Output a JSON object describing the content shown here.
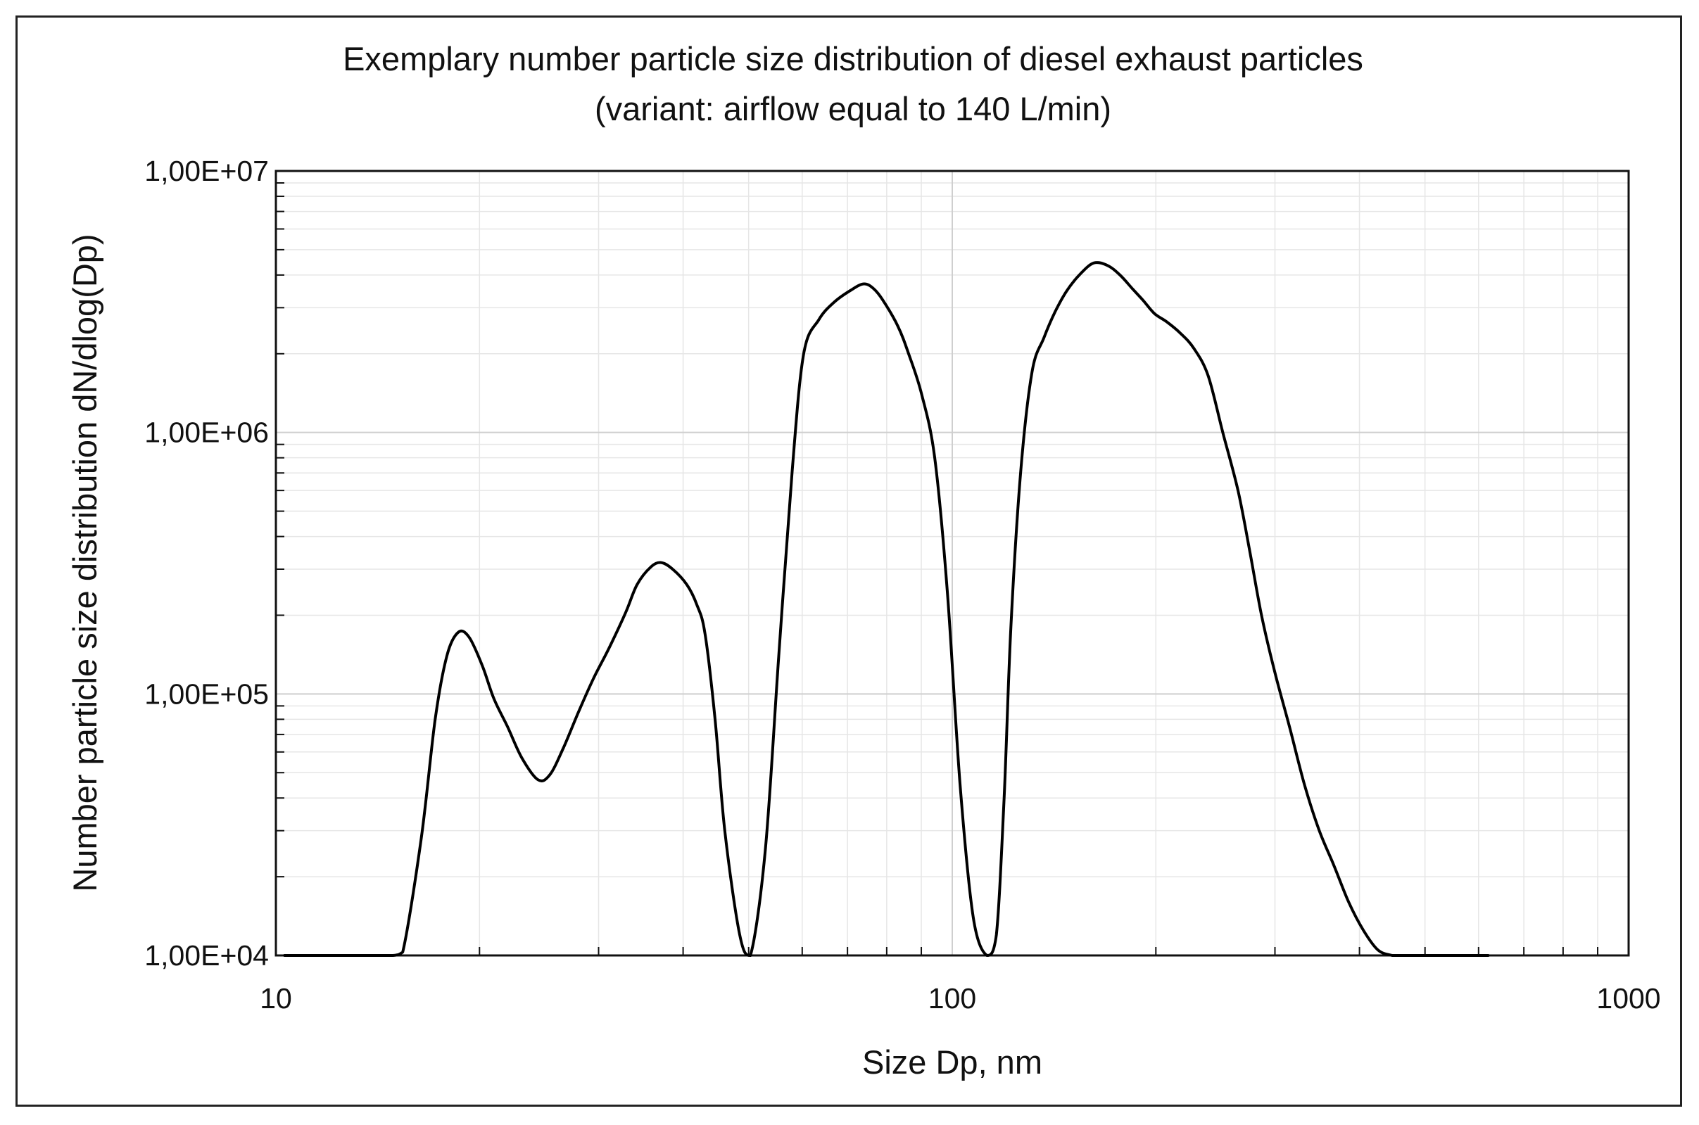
{
  "chart_data": {
    "type": "line",
    "title": "Exemplary number particle size distribution of diesel exhaust particles",
    "subtitle": "(variant: airflow equal to 140 L/min)",
    "xlabel": "Size Dp, nm",
    "ylabel": "Number particle size distribution dN/dlog(Dp)",
    "x_scale": "log",
    "y_scale": "log",
    "xlim": [
      10,
      1000
    ],
    "ylim": [
      10000,
      10000000
    ],
    "x_ticks": [
      {
        "value": 10,
        "label": "10"
      },
      {
        "value": 100,
        "label": "100"
      },
      {
        "value": 1000,
        "label": "1000"
      }
    ],
    "y_ticks": [
      {
        "value": 10000,
        "label": "1,00E+04"
      },
      {
        "value": 100000,
        "label": "1,00E+05"
      },
      {
        "value": 1000000,
        "label": "1,00E+06"
      },
      {
        "value": 10000000,
        "label": "1,00E+07"
      }
    ],
    "grid": true,
    "series": [
      {
        "color": "#000000",
        "x": [
          10.3,
          11.8,
          13.0,
          14.0,
          14.9,
          15.4,
          16.4,
          17.2,
          17.9,
          18.6,
          19.3,
          20.2,
          21.0,
          22.0,
          23.1,
          24.4,
          25.4,
          26.6,
          28.0,
          29.5,
          31.1,
          32.9,
          34.2,
          35.8,
          37.1,
          38.6,
          40.5,
          41.9,
          43.1,
          44.6,
          46.1,
          48.5,
          50.3,
          52.9,
          55.4,
          58.0,
          60.3,
          63.5,
          66.9,
          70.8,
          74.0,
          76.5,
          79.0,
          83.1,
          86.2,
          90.1,
          94.2,
          98.3,
          102.7,
          107.4,
          112.5,
          116.2,
          119.3,
          122.1,
          126.2,
          131.2,
          136.6,
          142.0,
          147.9,
          154.8,
          162.0,
          169.7,
          177.0,
          184.6,
          191.5,
          199.0,
          207.5,
          217.3,
          227.5,
          238.9,
          251.2,
          264.5,
          274.9,
          286.6,
          300.1,
          315.2,
          331.7,
          348.9,
          366.9,
          385.5,
          405.2,
          425.8,
          447.5,
          465.7,
          483.0,
          497.8,
          575.0,
          620.0
        ],
        "y": [
          10000,
          10000,
          10000,
          10000,
          10000,
          10300,
          28000,
          80000,
          140000,
          172000,
          165000,
          128000,
          96000,
          75000,
          57000,
          47000,
          49000,
          62000,
          85000,
          115000,
          150000,
          205000,
          262000,
          305000,
          318000,
          300000,
          262000,
          220000,
          170000,
          80000,
          30000,
          12000,
          10000,
          25000,
          140000,
          720000,
          2000000,
          2700000,
          3150000,
          3500000,
          3700000,
          3550000,
          3200000,
          2550000,
          2000000,
          1400000,
          800000,
          250000,
          45000,
          14000,
          10000,
          12000,
          40000,
          180000,
          700000,
          1700000,
          2300000,
          2900000,
          3500000,
          4050000,
          4450000,
          4350000,
          4000000,
          3550000,
          3200000,
          2850000,
          2650000,
          2400000,
          2100000,
          1650000,
          1000000,
          600000,
          360000,
          200000,
          120000,
          75000,
          45000,
          30000,
          22000,
          16000,
          12500,
          10500,
          10000,
          10000,
          10000,
          10000,
          10000,
          10000
        ]
      }
    ]
  }
}
